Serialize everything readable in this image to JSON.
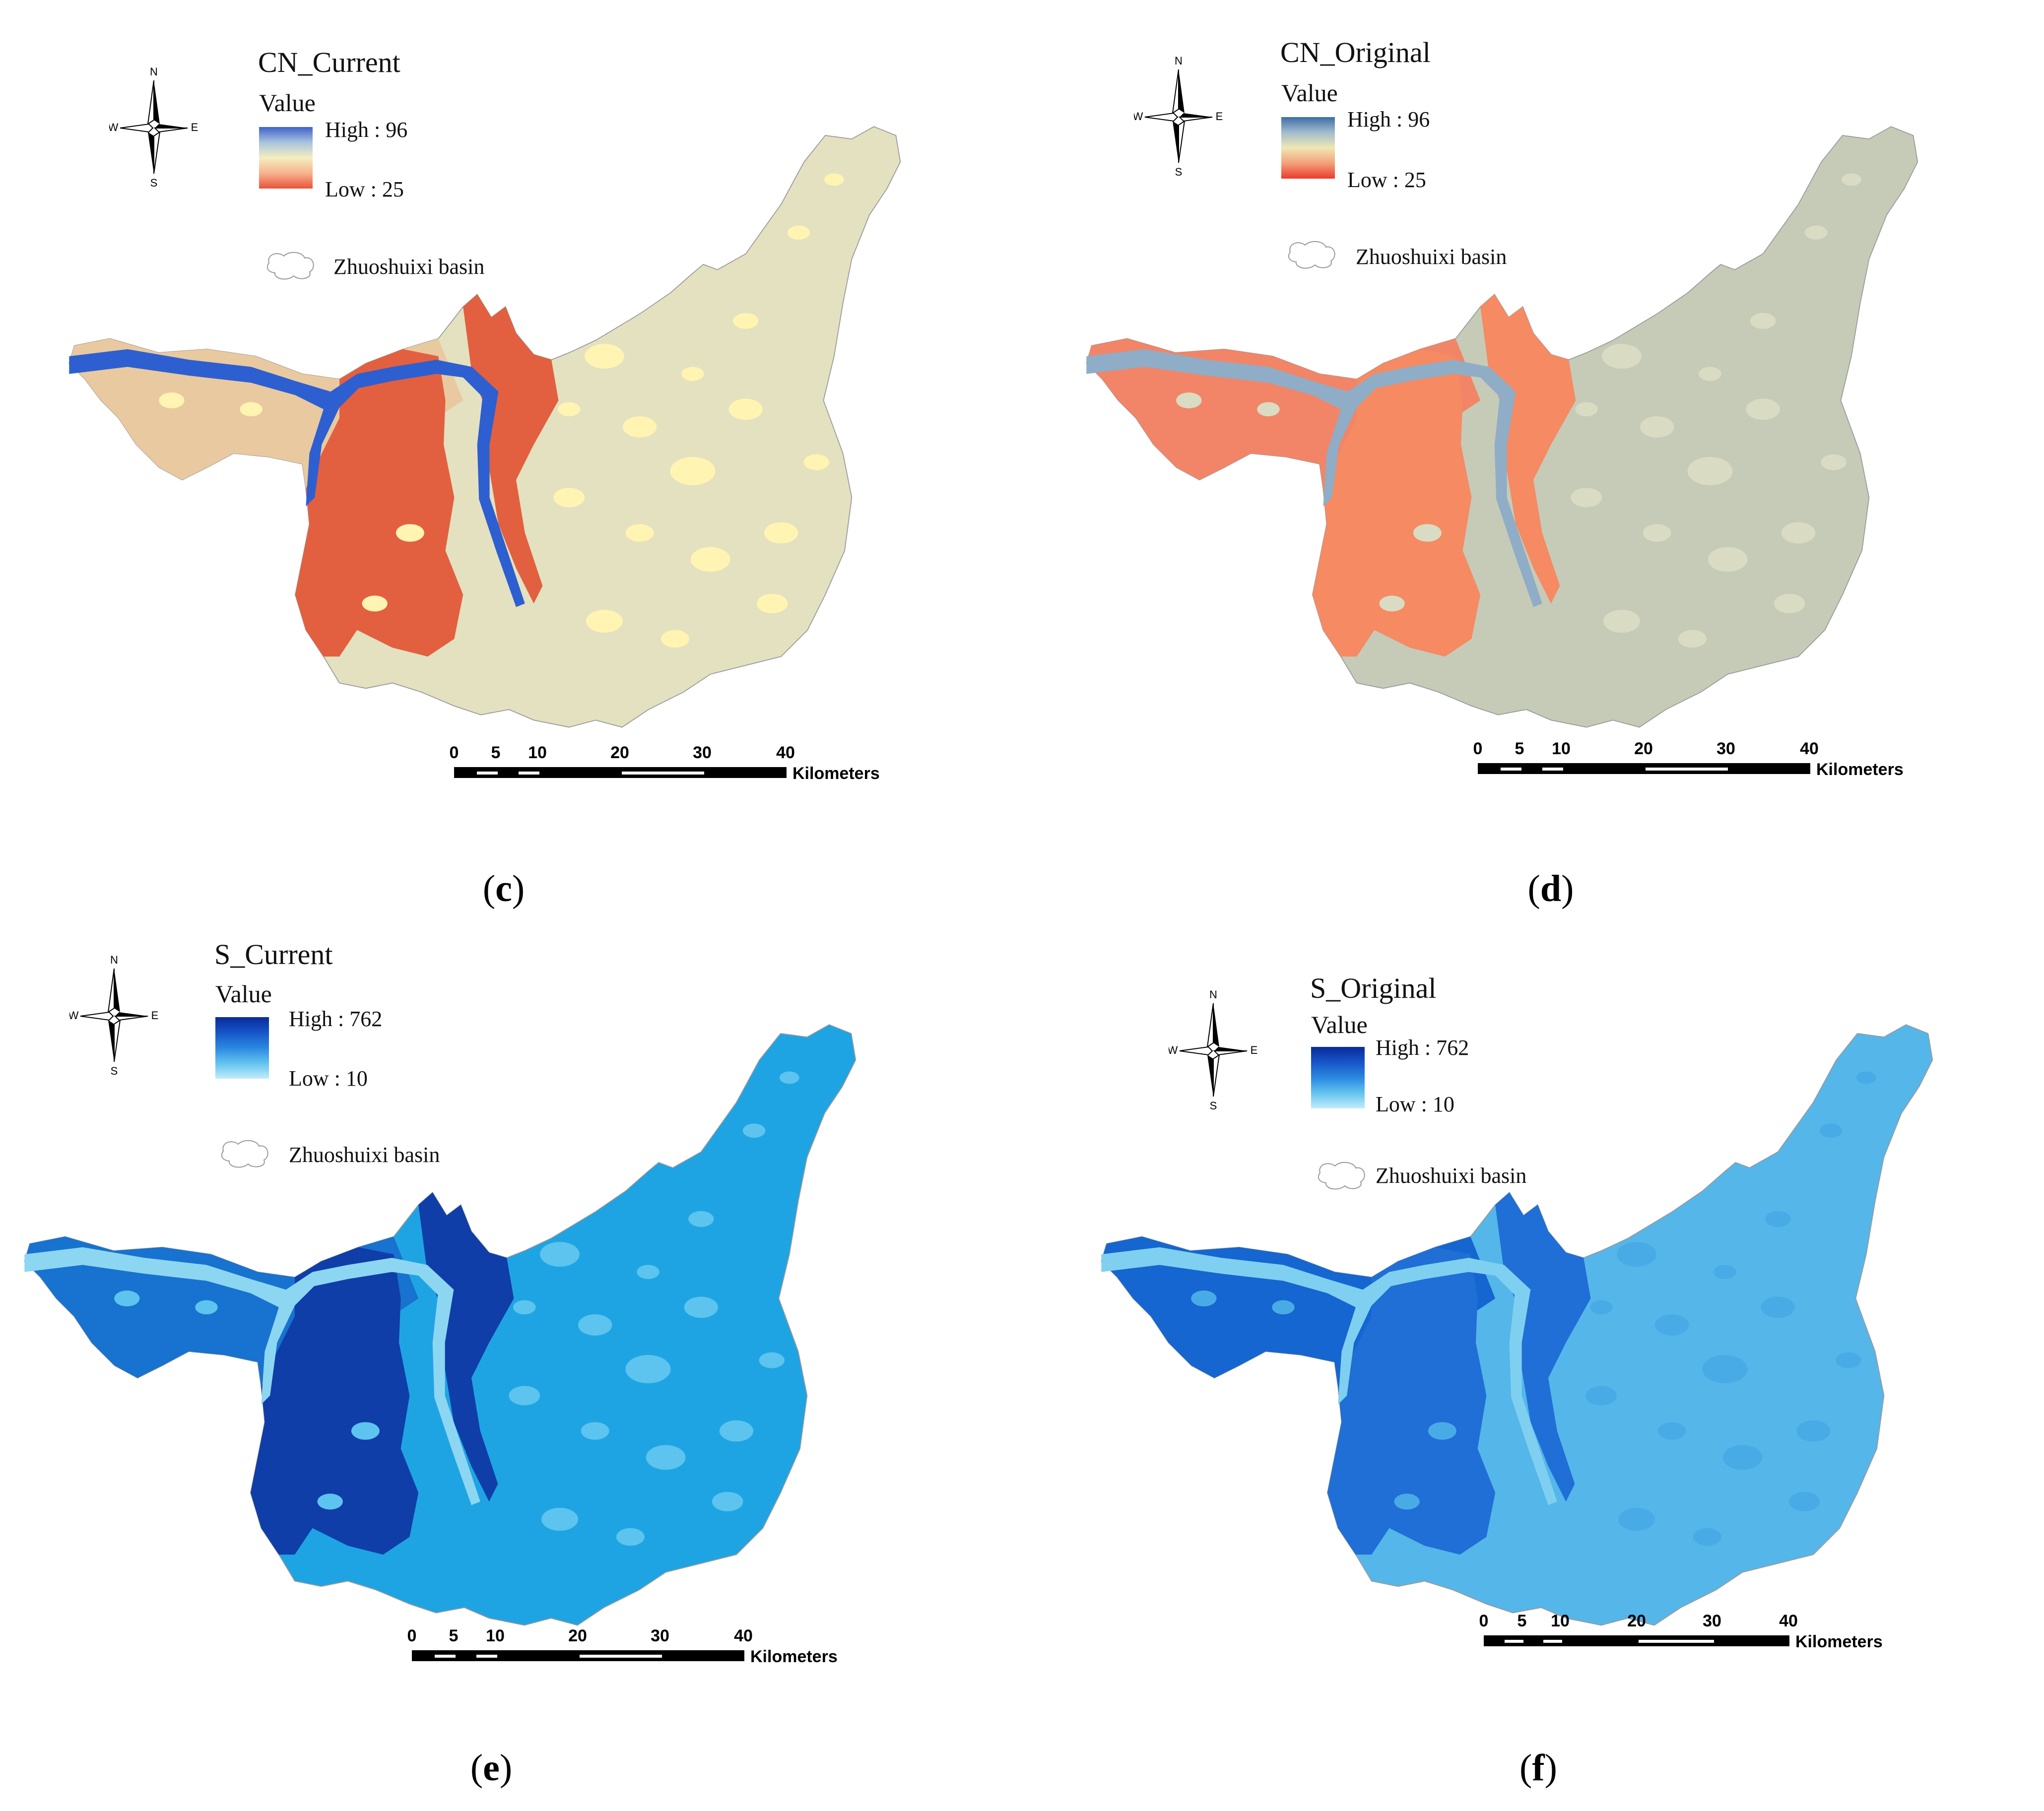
{
  "panels": [
    {
      "id": "c",
      "caption_open": "(",
      "caption_letter": "c",
      "caption_close": ")",
      "legend_title": "CN_Current",
      "legend_value": "Value",
      "high_label": "High : 96",
      "low_label": "Low : 25",
      "basin_label": "Zhuoshuixi basin",
      "ramp_colors": [
        "#3f63c8",
        "#a9c3df",
        "#f4eec0",
        "#f7b28e",
        "#e8533a"
      ],
      "fill_base": "#e3e1c0",
      "fill_west": "#e9c9a0",
      "fill_high": "#e2603f",
      "fill_river": "#2e5fd0",
      "fill_patch": "#fff4b2"
    },
    {
      "id": "d",
      "caption_open": "(",
      "caption_letter": "d",
      "caption_close": ")",
      "legend_title": "CN_Original",
      "legend_value": "Value",
      "high_label": "High : 96",
      "low_label": "Low : 25",
      "basin_label": "Zhuoshuixi basin",
      "ramp_colors": [
        "#3e6ea6",
        "#a2bccd",
        "#efe7b3",
        "#f4a07a",
        "#ea3a2c"
      ],
      "fill_base": "#c6cbb8",
      "fill_west": "#f28567",
      "fill_high": "#f58a63",
      "fill_river": "#8fadc6",
      "fill_patch": "#d9dcc2"
    },
    {
      "id": "e",
      "caption_open": "(",
      "caption_letter": "e",
      "caption_close": ")",
      "legend_title": "S_Current",
      "legend_value": "Value",
      "high_label": "High : 762",
      "low_label": "Low : 10",
      "basin_label": "Zhuoshuixi basin",
      "ramp_colors": [
        "#0a2a9a",
        "#1655c8",
        "#2a88e0",
        "#63c3ef",
        "#c3ecf9"
      ],
      "fill_base": "#1fa4e3",
      "fill_west": "#1872cf",
      "fill_high": "#0f3ea8",
      "fill_river": "#8dd6f2",
      "fill_patch": "#5cc4ee"
    },
    {
      "id": "f",
      "caption_open": "(",
      "caption_letter": "f",
      "caption_close": ")",
      "legend_title": "S_Original",
      "legend_value": "Value",
      "high_label": "High : 762",
      "low_label": "Low : 10",
      "basin_label": "Zhuoshuixi basin",
      "ramp_colors": [
        "#0a2a9a",
        "#1655c8",
        "#2a88e0",
        "#63c3ef",
        "#c3ecf9"
      ],
      "fill_base": "#55b6ea",
      "fill_west": "#1566d0",
      "fill_high": "#1f6fd6",
      "fill_river": "#7fd0f0",
      "fill_patch": "#49abe6"
    }
  ],
  "north_arrow": {
    "n": "N",
    "s": "S",
    "e": "E",
    "w": "W"
  },
  "scale_bar": {
    "ticks": [
      "0",
      "5",
      "10",
      "20",
      "30",
      "40"
    ],
    "unit": "Kilometers"
  }
}
